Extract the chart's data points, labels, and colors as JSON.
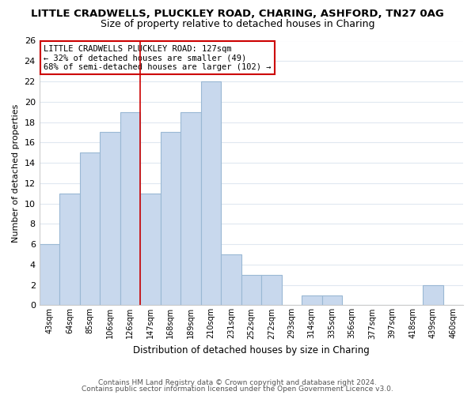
{
  "title": "LITTLE CRADWELLS, PLUCKLEY ROAD, CHARING, ASHFORD, TN27 0AG",
  "subtitle": "Size of property relative to detached houses in Charing",
  "xlabel": "Distribution of detached houses by size in Charing",
  "ylabel": "Number of detached properties",
  "bar_color": "#c8d8ed",
  "bar_edge_color": "#9ab8d4",
  "categories": [
    "43sqm",
    "64sqm",
    "85sqm",
    "106sqm",
    "126sqm",
    "147sqm",
    "168sqm",
    "189sqm",
    "210sqm",
    "231sqm",
    "252sqm",
    "272sqm",
    "293sqm",
    "314sqm",
    "335sqm",
    "356sqm",
    "377sqm",
    "397sqm",
    "418sqm",
    "439sqm",
    "460sqm"
  ],
  "values": [
    6,
    11,
    15,
    17,
    19,
    11,
    17,
    19,
    22,
    5,
    3,
    3,
    0,
    1,
    1,
    0,
    0,
    0,
    0,
    2,
    0
  ],
  "ylim": [
    0,
    26
  ],
  "yticks": [
    0,
    2,
    4,
    6,
    8,
    10,
    12,
    14,
    16,
    18,
    20,
    22,
    24,
    26
  ],
  "annotation_box_text": "LITTLE CRADWELLS PLUCKLEY ROAD: 127sqm\n← 32% of detached houses are smaller (49)\n68% of semi-detached houses are larger (102) →",
  "annotation_box_edge_color": "#cc0000",
  "property_line_color": "#cc0000",
  "property_line_x": 4.5,
  "footer_line1": "Contains HM Land Registry data © Crown copyright and database right 2024.",
  "footer_line2": "Contains public sector information licensed under the Open Government Licence v3.0.",
  "background_color": "#ffffff",
  "grid_color": "#e0e8f0",
  "title_fontsize": 9.5,
  "subtitle_fontsize": 9.0,
  "footer_fontsize": 6.5
}
